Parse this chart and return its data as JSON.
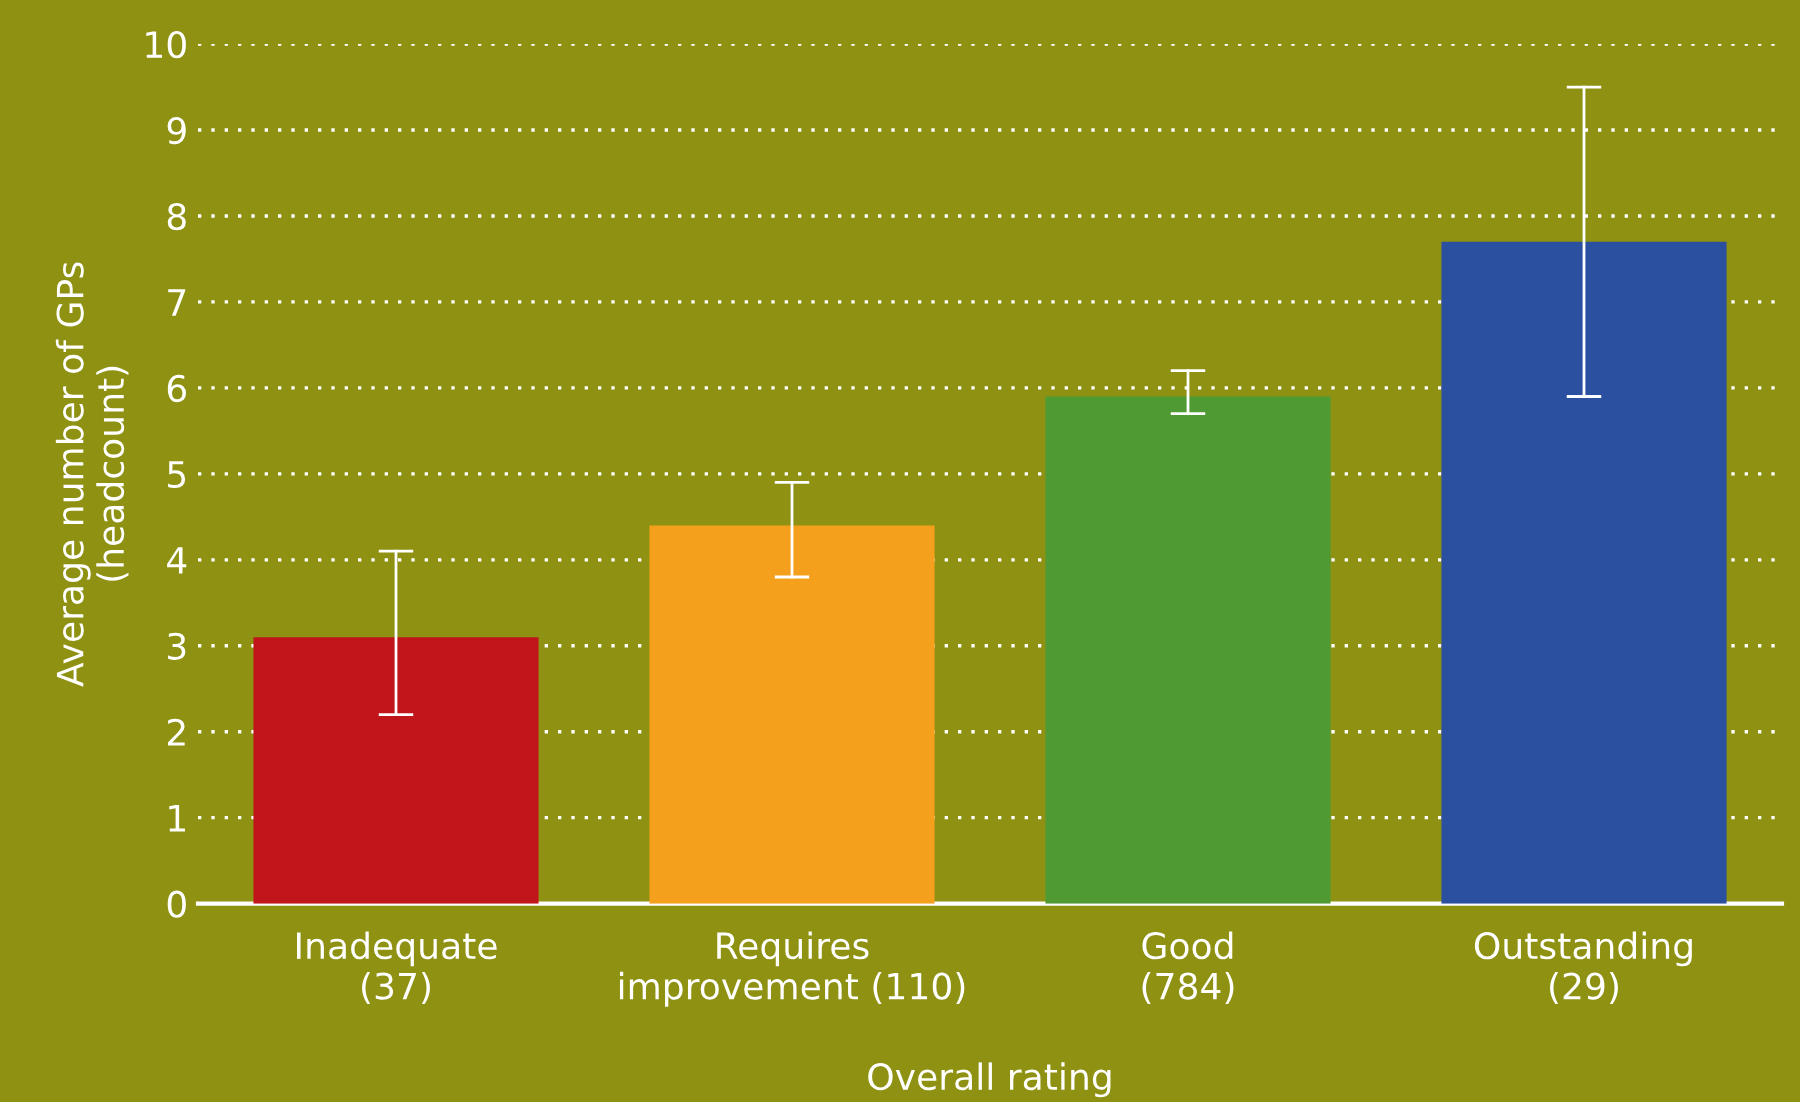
{
  "chart_data": {
    "type": "bar",
    "xlabel": "Overall rating",
    "ylabel": "Average number of GPs\n(headcount)",
    "categories": [
      "Inadequate\n(37)",
      "Requires\nimprovement (110)",
      "Good\n(784)",
      "Outstanding\n(29)"
    ],
    "values": [
      3.1,
      4.4,
      5.9,
      7.7
    ],
    "colors": [
      "#c0161b",
      "#f5a01c",
      "#4f9a32",
      "#2c50a0"
    ],
    "errors": [
      [
        2.2,
        4.1
      ],
      [
        3.8,
        4.9
      ],
      [
        5.7,
        6.2
      ],
      [
        5.9,
        9.5
      ]
    ],
    "ylim": [
      0,
      10
    ],
    "yticks": [
      0,
      1,
      2,
      3,
      4,
      5,
      6,
      7,
      8,
      9,
      10
    ],
    "grid": "y"
  }
}
